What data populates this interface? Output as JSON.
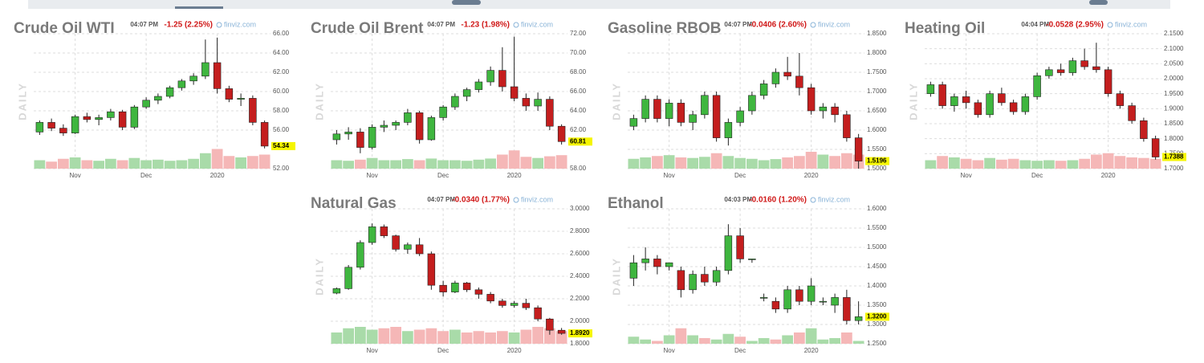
{
  "colors": {
    "up": "#3fb63f",
    "down": "#c41e1e",
    "volume_up": "#a9dba9",
    "volume_down": "#f5b7b7",
    "last_highlight": "#f5f500"
  },
  "chart_data": [
    {
      "type": "candlestick",
      "title": "Crude Oil WTI",
      "time": "04:07 PM",
      "change": "-1.25 (2.25%)",
      "source": "finviz.com",
      "side_label": "DAILY",
      "categories": [
        null,
        null,
        null,
        "Nov",
        null,
        null,
        null,
        null,
        null,
        "Dec",
        null,
        null,
        null,
        null,
        null,
        "2020",
        null,
        null,
        null,
        null
      ],
      "ohlc": [
        [
          55.8,
          57,
          55.5,
          56.8
        ],
        [
          56.8,
          57.2,
          55.9,
          56.2
        ],
        [
          56.2,
          56.6,
          55.4,
          55.7
        ],
        [
          55.7,
          57.6,
          55.6,
          57.4
        ],
        [
          57.4,
          57.8,
          56.8,
          57.1
        ],
        [
          57.1,
          57.6,
          56.5,
          57.3
        ],
        [
          57.3,
          58.2,
          57,
          57.9
        ],
        [
          57.9,
          58.1,
          56,
          56.3
        ],
        [
          56.3,
          58.6,
          56.1,
          58.4
        ],
        [
          58.4,
          59.4,
          58.2,
          59.1
        ],
        [
          59.1,
          59.8,
          58.7,
          59.5
        ],
        [
          59.5,
          60.6,
          59.3,
          60.4
        ],
        [
          60.4,
          61.3,
          60.1,
          61.1
        ],
        [
          61.1,
          61.9,
          60.7,
          61.6
        ],
        [
          61.6,
          65.4,
          61.3,
          63
        ],
        [
          63,
          65.6,
          59.8,
          60.3
        ],
        [
          60.3,
          60.6,
          58.9,
          59.2
        ],
        [
          59.2,
          59.8,
          58.5,
          59.3
        ],
        [
          59.3,
          59.6,
          56.5,
          56.8
        ],
        [
          56.8,
          57,
          54.1,
          54.34
        ]
      ],
      "volume": [
        30,
        25,
        35,
        40,
        30,
        28,
        35,
        30,
        38,
        30,
        32,
        28,
        30,
        35,
        55,
        70,
        45,
        40,
        45,
        50
      ],
      "last_value": 54.34,
      "ylim": [
        52,
        66
      ],
      "yticks": [
        {
          "value": 52,
          "label": "52.00"
        },
        {
          "value": 56,
          "label": "56.00"
        },
        {
          "value": 58,
          "label": "58.00"
        },
        {
          "value": 60,
          "label": "60.00"
        },
        {
          "value": 62,
          "label": "62.00"
        },
        {
          "value": 64,
          "label": "64.00"
        },
        {
          "value": 66,
          "label": "66.00"
        }
      ]
    },
    {
      "type": "candlestick",
      "title": "Crude Oil Brent",
      "time": "04:07 PM",
      "change": "-1.23 (1.98%)",
      "source": "finviz.com",
      "side_label": "DAILY",
      "categories": [
        null,
        null,
        null,
        "Nov",
        null,
        null,
        null,
        null,
        null,
        "Dec",
        null,
        null,
        null,
        null,
        null,
        "2020",
        null,
        null,
        null,
        null
      ],
      "ohlc": [
        [
          61,
          62,
          60.5,
          61.6
        ],
        [
          61.6,
          62.3,
          61,
          61.8
        ],
        [
          61.8,
          62.2,
          59.6,
          60.2
        ],
        [
          60.2,
          62.6,
          60,
          62.3
        ],
        [
          62.3,
          63,
          61.8,
          62.5
        ],
        [
          62.5,
          63,
          62,
          62.8
        ],
        [
          62.8,
          64.2,
          62.5,
          63.8
        ],
        [
          63.8,
          64,
          60.6,
          61
        ],
        [
          61,
          63.5,
          60.9,
          63.3
        ],
        [
          63.3,
          64.6,
          63,
          64.4
        ],
        [
          64.4,
          65.8,
          64.1,
          65.5
        ],
        [
          65.5,
          66.4,
          65,
          66.2
        ],
        [
          66.2,
          67.3,
          65.9,
          67
        ],
        [
          67,
          68.6,
          66.6,
          68.2
        ],
        [
          68.2,
          70.6,
          66,
          66.5
        ],
        [
          66.5,
          71.7,
          65,
          65.3
        ],
        [
          65.3,
          65.8,
          64,
          64.5
        ],
        [
          64.5,
          65.9,
          64,
          65.2
        ],
        [
          65.2,
          65.5,
          62,
          62.4
        ],
        [
          62.4,
          62.6,
          60.5,
          60.81
        ]
      ],
      "volume": [
        30,
        28,
        32,
        38,
        30,
        30,
        34,
        30,
        36,
        30,
        30,
        28,
        32,
        36,
        50,
        65,
        42,
        38,
        44,
        48
      ],
      "last_value": 60.81,
      "ylim": [
        58,
        72
      ],
      "yticks": [
        {
          "value": 58,
          "label": "58.00"
        },
        {
          "value": 62,
          "label": "62.00"
        },
        {
          "value": 64,
          "label": "64.00"
        },
        {
          "value": 66,
          "label": "66.00"
        },
        {
          "value": 68,
          "label": "68.00"
        },
        {
          "value": 70,
          "label": "70.00"
        },
        {
          "value": 72,
          "label": "72.00"
        }
      ]
    },
    {
      "type": "candlestick",
      "title": "Gasoline RBOB",
      "time": "04:07 PM",
      "change": "-0.0406 (2.60%)",
      "source": "finviz.com",
      "side_label": "DAILY",
      "categories": [
        null,
        null,
        null,
        "Nov",
        null,
        null,
        null,
        null,
        null,
        "Dec",
        null,
        null,
        null,
        null,
        null,
        "2020",
        null,
        null,
        null,
        null
      ],
      "ohlc": [
        [
          1.61,
          1.64,
          1.6,
          1.63
        ],
        [
          1.63,
          1.69,
          1.62,
          1.68
        ],
        [
          1.68,
          1.69,
          1.62,
          1.63
        ],
        [
          1.63,
          1.68,
          1.61,
          1.67
        ],
        [
          1.67,
          1.68,
          1.61,
          1.62
        ],
        [
          1.62,
          1.65,
          1.6,
          1.64
        ],
        [
          1.64,
          1.7,
          1.63,
          1.69
        ],
        [
          1.69,
          1.7,
          1.57,
          1.58
        ],
        [
          1.58,
          1.63,
          1.56,
          1.62
        ],
        [
          1.62,
          1.66,
          1.61,
          1.65
        ],
        [
          1.65,
          1.7,
          1.64,
          1.69
        ],
        [
          1.69,
          1.73,
          1.68,
          1.72
        ],
        [
          1.72,
          1.76,
          1.71,
          1.75
        ],
        [
          1.75,
          1.79,
          1.73,
          1.74
        ],
        [
          1.74,
          1.8,
          1.69,
          1.71
        ],
        [
          1.71,
          1.72,
          1.64,
          1.65
        ],
        [
          1.65,
          1.67,
          1.63,
          1.66
        ],
        [
          1.66,
          1.67,
          1.62,
          1.64
        ],
        [
          1.64,
          1.65,
          1.57,
          1.58
        ],
        [
          1.58,
          1.59,
          1.5,
          1.5196
        ]
      ],
      "volume": [
        35,
        40,
        45,
        48,
        40,
        38,
        42,
        55,
        45,
        38,
        35,
        30,
        34,
        40,
        45,
        60,
        50,
        45,
        55,
        50
      ],
      "last_value": 1.5196,
      "ylim": [
        1.5,
        1.85
      ],
      "yticks": [
        {
          "value": 1.5,
          "label": "1.5000"
        },
        {
          "value": 1.55,
          "label": "1.5500"
        },
        {
          "value": 1.6,
          "label": "1.6000"
        },
        {
          "value": 1.65,
          "label": "1.6500"
        },
        {
          "value": 1.7,
          "label": "1.7000"
        },
        {
          "value": 1.75,
          "label": "1.7500"
        },
        {
          "value": 1.8,
          "label": "1.8000"
        },
        {
          "value": 1.85,
          "label": "1.8500"
        }
      ]
    },
    {
      "type": "candlestick",
      "title": "Heating Oil",
      "time": "04:04 PM",
      "change": "-0.0528 (2.95%)",
      "source": "finviz.com",
      "side_label": "DAILY",
      "categories": [
        null,
        null,
        null,
        "Nov",
        null,
        null,
        null,
        null,
        null,
        "Dec",
        null,
        null,
        null,
        null,
        null,
        "2020",
        null,
        null,
        null,
        null
      ],
      "ohlc": [
        [
          1.95,
          1.99,
          1.94,
          1.98
        ],
        [
          1.98,
          1.99,
          1.9,
          1.91
        ],
        [
          1.91,
          1.95,
          1.89,
          1.94
        ],
        [
          1.94,
          1.96,
          1.9,
          1.92
        ],
        [
          1.92,
          1.93,
          1.87,
          1.88
        ],
        [
          1.88,
          1.96,
          1.87,
          1.95
        ],
        [
          1.95,
          1.97,
          1.91,
          1.92
        ],
        [
          1.92,
          1.93,
          1.88,
          1.89
        ],
        [
          1.89,
          1.95,
          1.88,
          1.94
        ],
        [
          1.94,
          2.02,
          1.93,
          2.01
        ],
        [
          2.01,
          2.04,
          2.0,
          2.03
        ],
        [
          2.03,
          2.05,
          2.01,
          2.02
        ],
        [
          2.02,
          2.07,
          2.01,
          2.06
        ],
        [
          2.06,
          2.1,
          2.03,
          2.04
        ],
        [
          2.04,
          2.12,
          2.02,
          2.03
        ],
        [
          2.03,
          2.04,
          1.94,
          1.95
        ],
        [
          1.95,
          1.96,
          1.9,
          1.91
        ],
        [
          1.91,
          1.92,
          1.85,
          1.86
        ],
        [
          1.86,
          1.87,
          1.79,
          1.8
        ],
        [
          1.8,
          1.81,
          1.73,
          1.7388
        ]
      ],
      "volume": [
        30,
        45,
        40,
        35,
        30,
        38,
        32,
        35,
        30,
        28,
        30,
        28,
        30,
        35,
        50,
        55,
        45,
        40,
        38,
        35
      ],
      "last_value": 1.7388,
      "ylim": [
        1.7,
        2.15
      ],
      "yticks": [
        {
          "value": 1.7,
          "label": "1.7000"
        },
        {
          "value": 1.75,
          "label": "1.7500"
        },
        {
          "value": 1.8,
          "label": "1.8000"
        },
        {
          "value": 1.85,
          "label": "1.8500"
        },
        {
          "value": 1.9,
          "label": "1.9000"
        },
        {
          "value": 1.95,
          "label": "1.9500"
        },
        {
          "value": 2,
          "label": "2.0000"
        },
        {
          "value": 2.05,
          "label": "2.0500"
        },
        {
          "value": 2.1,
          "label": "2.1000"
        },
        {
          "value": 2.15,
          "label": "2.1500"
        }
      ]
    },
    {
      "type": "candlestick",
      "title": "Natural Gas",
      "time": "04:07 PM",
      "change": "-0.0340 (1.77%)",
      "source": "finviz.com",
      "side_label": "DAILY",
      "categories": [
        null,
        null,
        null,
        "Nov",
        null,
        null,
        null,
        null,
        null,
        "Dec",
        null,
        null,
        null,
        null,
        null,
        "2020",
        null,
        null,
        null,
        null
      ],
      "ohlc": [
        [
          2.25,
          2.3,
          2.24,
          2.29
        ],
        [
          2.29,
          2.5,
          2.28,
          2.48
        ],
        [
          2.48,
          2.72,
          2.46,
          2.7
        ],
        [
          2.7,
          2.87,
          2.68,
          2.84
        ],
        [
          2.84,
          2.86,
          2.74,
          2.76
        ],
        [
          2.76,
          2.77,
          2.62,
          2.64
        ],
        [
          2.64,
          2.7,
          2.6,
          2.68
        ],
        [
          2.68,
          2.74,
          2.58,
          2.6
        ],
        [
          2.6,
          2.62,
          2.28,
          2.32
        ],
        [
          2.32,
          2.36,
          2.22,
          2.26
        ],
        [
          2.26,
          2.36,
          2.25,
          2.34
        ],
        [
          2.34,
          2.35,
          2.26,
          2.28
        ],
        [
          2.28,
          2.3,
          2.2,
          2.24
        ],
        [
          2.24,
          2.26,
          2.16,
          2.18
        ],
        [
          2.18,
          2.2,
          2.12,
          2.14
        ],
        [
          2.14,
          2.18,
          2.12,
          2.16
        ],
        [
          2.16,
          2.2,
          2.1,
          2.12
        ],
        [
          2.12,
          2.14,
          2.0,
          2.02
        ],
        [
          2.02,
          2.03,
          1.88,
          1.92
        ],
        [
          1.92,
          1.94,
          1.88,
          1.892
        ]
      ],
      "volume": [
        40,
        55,
        60,
        50,
        55,
        60,
        45,
        50,
        55,
        45,
        50,
        40,
        45,
        40,
        45,
        40,
        50,
        60,
        55,
        45
      ],
      "last_value": {
        "value": 1.892,
        "label": "1.8920"
      },
      "ylim": [
        1.8,
        3.0
      ],
      "yticks": [
        {
          "value": 1.8,
          "label": "1.8000"
        },
        {
          "value": 2,
          "label": "2.0000"
        },
        {
          "value": 2.2,
          "label": "2.2000"
        },
        {
          "value": 2.4,
          "label": "2.4000"
        },
        {
          "value": 2.6,
          "label": "2.6000"
        },
        {
          "value": 2.8,
          "label": "2.8000"
        },
        {
          "value": 3,
          "label": "3.0000"
        }
      ]
    },
    {
      "type": "candlestick",
      "title": "Ethanol",
      "time": "04:03 PM",
      "change": "-0.0160 (1.20%)",
      "source": "finviz.com",
      "side_label": "DAILY",
      "categories": [
        null,
        null,
        null,
        "Nov",
        null,
        null,
        null,
        null,
        null,
        "Dec",
        null,
        null,
        null,
        null,
        null,
        "2020",
        null,
        null,
        null,
        null
      ],
      "ohlc": [
        [
          1.42,
          1.48,
          1.4,
          1.46
        ],
        [
          1.46,
          1.5,
          1.44,
          1.47
        ],
        [
          1.47,
          1.48,
          1.43,
          1.45
        ],
        [
          1.45,
          1.46,
          1.44,
          1.46
        ],
        [
          1.44,
          1.45,
          1.37,
          1.39
        ],
        [
          1.39,
          1.44,
          1.38,
          1.43
        ],
        [
          1.43,
          1.45,
          1.4,
          1.41
        ],
        [
          1.41,
          1.45,
          1.4,
          1.44
        ],
        [
          1.44,
          1.56,
          1.43,
          1.53
        ],
        [
          1.53,
          1.55,
          1.46,
          1.47
        ],
        [
          1.47,
          1.47,
          1.46,
          1.47
        ],
        [
          1.37,
          1.38,
          1.36,
          1.37
        ],
        [
          1.36,
          1.37,
          1.33,
          1.34
        ],
        [
          1.34,
          1.4,
          1.33,
          1.39
        ],
        [
          1.39,
          1.4,
          1.35,
          1.36
        ],
        [
          1.36,
          1.42,
          1.35,
          1.4
        ],
        [
          1.36,
          1.37,
          1.35,
          1.36
        ],
        [
          1.35,
          1.38,
          1.33,
          1.37
        ],
        [
          1.37,
          1.39,
          1.3,
          1.31
        ],
        [
          1.31,
          1.36,
          1.3,
          1.32
        ]
      ],
      "volume": [
        25,
        15,
        10,
        30,
        55,
        30,
        20,
        15,
        35,
        25,
        10,
        20,
        15,
        30,
        40,
        55,
        15,
        20,
        40,
        10
      ],
      "last_value": {
        "value": 1.32,
        "label": "1.3200"
      },
      "ylim": [
        1.25,
        1.6
      ],
      "yticks": [
        {
          "value": 1.25,
          "label": "1.2500"
        },
        {
          "value": 1.3,
          "label": "1.3000"
        },
        {
          "value": 1.35,
          "label": "1.3500"
        },
        {
          "value": 1.4,
          "label": "1.4000"
        },
        {
          "value": 1.45,
          "label": "1.4500"
        },
        {
          "value": 1.5,
          "label": "1.5000"
        },
        {
          "value": 1.55,
          "label": "1.5500"
        },
        {
          "value": 1.6,
          "label": "1.6000"
        }
      ]
    }
  ]
}
